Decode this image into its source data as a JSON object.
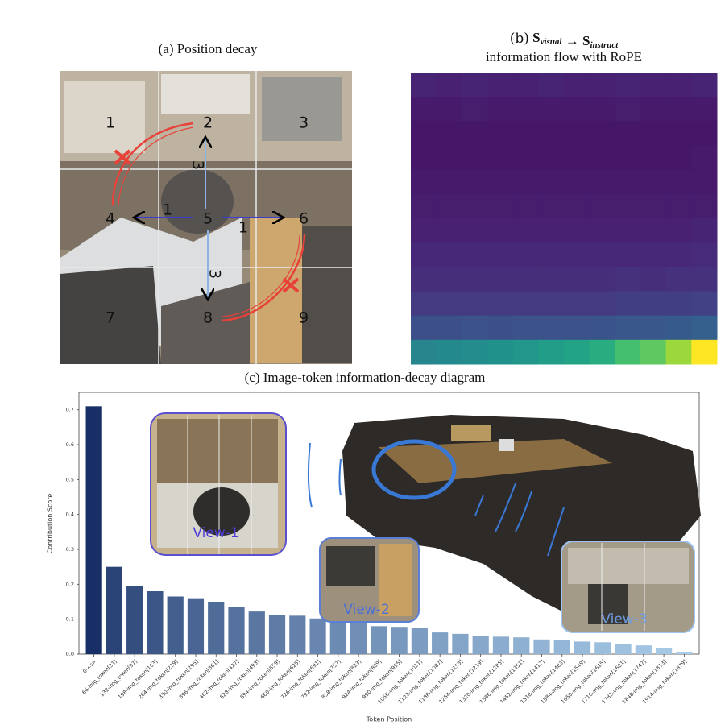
{
  "panel_a": {
    "title": "(a) Position decay",
    "cells": [
      "1",
      "2",
      "3",
      "4",
      "5",
      "6",
      "7",
      "8",
      "9"
    ],
    "arrow_labels": [
      "3",
      "1",
      "1",
      "3"
    ]
  },
  "panel_b": {
    "title": {
      "label": "(b)",
      "s1": "S",
      "sub1": "visual",
      "arrow": "→",
      "s2": "S",
      "sub2": "instruct"
    },
    "subtitle": "information flow with RoPE",
    "colormap": "viridis",
    "values": [
      [
        0.1,
        0.09,
        0.1,
        0.09,
        0.09,
        0.1,
        0.09,
        0.09,
        0.1,
        0.09,
        0.09,
        0.1
      ],
      [
        0.07,
        0.07,
        0.08,
        0.07,
        0.07,
        0.07,
        0.07,
        0.07,
        0.08,
        0.07,
        0.07,
        0.07
      ],
      [
        0.06,
        0.06,
        0.06,
        0.06,
        0.06,
        0.06,
        0.06,
        0.06,
        0.06,
        0.06,
        0.06,
        0.06
      ],
      [
        0.06,
        0.06,
        0.06,
        0.06,
        0.06,
        0.06,
        0.06,
        0.06,
        0.06,
        0.06,
        0.06,
        0.07
      ],
      [
        0.07,
        0.07,
        0.07,
        0.07,
        0.07,
        0.07,
        0.07,
        0.07,
        0.07,
        0.07,
        0.07,
        0.07
      ],
      [
        0.08,
        0.08,
        0.08,
        0.08,
        0.08,
        0.08,
        0.08,
        0.08,
        0.08,
        0.08,
        0.08,
        0.08
      ],
      [
        0.09,
        0.09,
        0.09,
        0.09,
        0.09,
        0.09,
        0.09,
        0.09,
        0.09,
        0.09,
        0.09,
        0.1
      ],
      [
        0.11,
        0.11,
        0.11,
        0.11,
        0.11,
        0.11,
        0.11,
        0.11,
        0.11,
        0.11,
        0.11,
        0.12
      ],
      [
        0.13,
        0.13,
        0.13,
        0.13,
        0.13,
        0.13,
        0.13,
        0.13,
        0.14,
        0.13,
        0.14,
        0.14
      ],
      [
        0.17,
        0.17,
        0.17,
        0.17,
        0.17,
        0.17,
        0.17,
        0.17,
        0.18,
        0.18,
        0.18,
        0.19
      ],
      [
        0.24,
        0.24,
        0.25,
        0.24,
        0.25,
        0.25,
        0.25,
        0.26,
        0.27,
        0.27,
        0.28,
        0.3
      ],
      [
        0.45,
        0.47,
        0.48,
        0.5,
        0.52,
        0.55,
        0.58,
        0.62,
        0.7,
        0.75,
        0.85,
        1.0
      ]
    ]
  },
  "panel_c": {
    "type": "bar",
    "title": "(c) Image-token information-decay diagram",
    "y_label": "Contribution Score",
    "x_label": "Token Position",
    "categories": [
      "0-<s>",
      "66-img_token[31]",
      "132-img_token[97]",
      "198-img_token[163]",
      "264-img_token[229]",
      "330-img_token[295]",
      "396-img_token[361]",
      "462-img_token[427]",
      "528-img_token[493]",
      "594-img_token[559]",
      "660-img_token[625]",
      "726-img_token[691]",
      "792-img_token[757]",
      "858-img_token[823]",
      "924-img_token[889]",
      "990-img_token[955]",
      "1056-img_token[1021]",
      "1122-img_token[1087]",
      "1188-img_token[1153]",
      "1254-img_token[1219]",
      "1320-img_token[1285]",
      "1386-img_token[1351]",
      "1452-img_token[1417]",
      "1518-img_token[1483]",
      "1584-img_token[1549]",
      "1650-img_token[1615]",
      "1716-img_token[1681]",
      "1782-img_token[1747]",
      "1848-img_token[1813]",
      "1914-img_token[1879]"
    ],
    "values": [
      0.71,
      0.25,
      0.195,
      0.18,
      0.165,
      0.16,
      0.15,
      0.135,
      0.122,
      0.112,
      0.11,
      0.102,
      0.09,
      0.088,
      0.08,
      0.078,
      0.075,
      0.062,
      0.058,
      0.053,
      0.05,
      0.048,
      0.042,
      0.04,
      0.036,
      0.034,
      0.028,
      0.025,
      0.017,
      0.007
    ],
    "colors": [
      "#172f66",
      "#a8cbe8"
    ],
    "ylim": [
      0,
      0.75
    ],
    "yticks": [
      {
        "value": 0,
        "label": "0.0"
      },
      0.1,
      0.2,
      0.3,
      0.4,
      0.5,
      0.6,
      0.7
    ],
    "views": [
      "View-1",
      "View-2",
      "View-3"
    ]
  }
}
